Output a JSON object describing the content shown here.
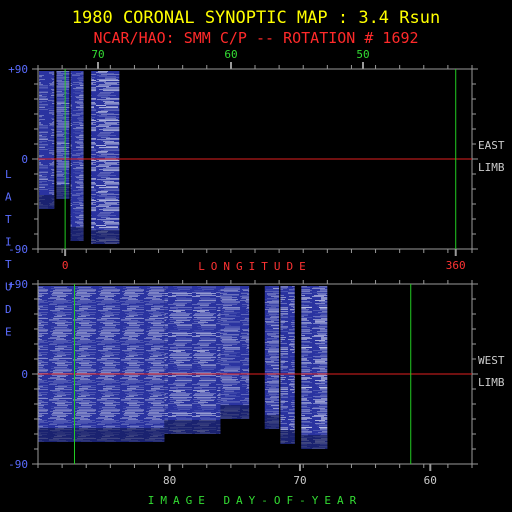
{
  "title": "1980 CORONAL SYNOPTIC MAP : 3.4 Rsun",
  "subtitle": "NCAR/HAO: SMM C/P -- ROTATION # 1692",
  "colors": {
    "background": "#000000",
    "title": "#ffff00",
    "subtitle": "#ff2a2a",
    "frame": "#9a9a9a",
    "green_ticks": "#33dd33",
    "red_labels": "#ff3333",
    "blue_labels": "#5a6cff",
    "white_labels": "#cccccc",
    "equator_line": "#e02020",
    "green_line": "#22cc22"
  },
  "chart_data": [
    {
      "type": "heatmap",
      "panel": "east",
      "side_label_1": "EAST",
      "side_label_2": "LIMB",
      "x_axis_label": "LONGITUDE",
      "x_ticks_bottom": [
        {
          "value": 0,
          "label": "0"
        },
        {
          "value": 360,
          "label": "360"
        }
      ],
      "x_ticks_top": [
        {
          "value": 70,
          "label": "70"
        },
        {
          "value": 60,
          "label": "60"
        },
        {
          "value": 50,
          "label": "50"
        }
      ],
      "y_ticks": [
        {
          "value": 90,
          "label": "+90"
        },
        {
          "value": 0,
          "label": "0"
        },
        {
          "value": -90,
          "label": "-90"
        }
      ],
      "ylim": [
        -90,
        90
      ],
      "xlim": [
        -25,
        375
      ],
      "equator_latitude": 0,
      "green_line_longitudes": [
        0,
        360
      ],
      "data_strips": [
        {
          "lon_start": -24,
          "lon_end": -10,
          "lat_top": 88,
          "lat_bottom": -50,
          "intensity": 0.55
        },
        {
          "lon_start": -8,
          "lon_end": 4,
          "lat_top": 88,
          "lat_bottom": -40,
          "intensity": 0.45
        },
        {
          "lon_start": 5,
          "lon_end": 17,
          "lat_top": 88,
          "lat_bottom": -82,
          "intensity": 0.5
        },
        {
          "lon_start": 24,
          "lon_end": 50,
          "lat_top": 88,
          "lat_bottom": -85,
          "intensity": 0.75
        }
      ]
    },
    {
      "type": "heatmap",
      "panel": "west",
      "side_label_1": "WEST",
      "side_label_2": "LIMB",
      "x_axis_label": "IMAGE DAY-OF-YEAR",
      "x_ticks_bottom": [
        {
          "value": 80,
          "label": "80"
        },
        {
          "value": 70,
          "label": "70"
        },
        {
          "value": 60,
          "label": "60"
        }
      ],
      "y_ticks": [
        {
          "value": 90,
          "label": "+90"
        },
        {
          "value": 0,
          "label": "0"
        },
        {
          "value": -90,
          "label": "-90"
        }
      ],
      "ylim": [
        -90,
        90
      ],
      "xlim": [
        90.1,
        56.8
      ],
      "equator_latitude": 0,
      "green_line_days": [
        87.3,
        61.5
      ],
      "data_strips": [
        {
          "day_start": 90.1,
          "day_end": 80.4,
          "lat_top": 88,
          "lat_bottom": -68,
          "intensity": 0.55
        },
        {
          "day_start": 80.4,
          "day_end": 76.1,
          "lat_top": 88,
          "lat_bottom": -60,
          "intensity": 0.5
        },
        {
          "day_start": 76.1,
          "day_end": 73.9,
          "lat_top": 88,
          "lat_bottom": -45,
          "intensity": 0.45
        },
        {
          "day_start": 72.7,
          "day_end": 71.6,
          "lat_top": 88,
          "lat_bottom": -55,
          "intensity": 0.5
        },
        {
          "day_start": 71.5,
          "day_end": 70.4,
          "lat_top": 88,
          "lat_bottom": -70,
          "intensity": 0.55
        },
        {
          "day_start": 69.9,
          "day_end": 67.9,
          "lat_top": 88,
          "lat_bottom": -75,
          "intensity": 0.7
        }
      ]
    }
  ],
  "y_axis_label": "LATITUDE"
}
